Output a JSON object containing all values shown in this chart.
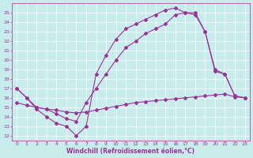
{
  "xlabel": "Windchill (Refroidissement éolien,°C)",
  "xlim": [
    -0.5,
    23.5
  ],
  "ylim": [
    11.5,
    26.0
  ],
  "xticks": [
    0,
    1,
    2,
    3,
    4,
    5,
    6,
    7,
    8,
    9,
    10,
    11,
    12,
    13,
    14,
    15,
    16,
    17,
    18,
    19,
    20,
    21,
    22,
    23
  ],
  "yticks": [
    12,
    13,
    14,
    15,
    16,
    17,
    18,
    19,
    20,
    21,
    22,
    23,
    24,
    25
  ],
  "bg_color": "#c8ecec",
  "grid_color": "#ffffff",
  "line_color": "#993399",
  "line1_x": [
    0,
    1,
    2,
    3,
    4,
    5,
    6,
    7,
    8,
    9,
    10,
    11,
    12,
    13,
    14,
    15,
    16,
    17,
    18,
    19,
    20,
    21,
    22,
    23
  ],
  "line1_y": [
    17.0,
    16.0,
    14.8,
    14.0,
    13.3,
    13.0,
    12.0,
    13.0,
    18.5,
    20.5,
    22.2,
    23.3,
    23.8,
    24.3,
    24.8,
    25.3,
    25.5,
    25.0,
    24.8,
    23.0,
    18.8,
    18.5,
    16.2,
    16.0
  ],
  "line2_x": [
    0,
    1,
    2,
    3,
    4,
    5,
    6,
    7,
    8,
    9,
    10,
    11,
    12,
    13,
    14,
    15,
    16,
    17,
    18,
    19,
    20,
    21,
    22,
    23
  ],
  "line2_y": [
    17.0,
    16.0,
    15.0,
    14.8,
    14.3,
    13.8,
    13.5,
    15.5,
    17.0,
    18.5,
    20.0,
    21.3,
    22.0,
    22.8,
    23.3,
    23.8,
    24.8,
    25.0,
    25.0,
    23.0,
    19.0,
    18.5,
    16.2,
    16.0
  ],
  "line3_x": [
    0,
    1,
    2,
    3,
    4,
    5,
    6,
    7,
    8,
    9,
    10,
    11,
    12,
    13,
    14,
    15,
    16,
    17,
    18,
    19,
    20,
    21,
    22,
    23
  ],
  "line3_y": [
    15.5,
    15.2,
    15.0,
    14.8,
    14.7,
    14.5,
    14.4,
    14.5,
    14.7,
    14.9,
    15.1,
    15.3,
    15.5,
    15.6,
    15.7,
    15.8,
    15.9,
    16.0,
    16.1,
    16.2,
    16.3,
    16.4,
    16.1,
    16.0
  ],
  "marker": "D",
  "marker_size": 2.0,
  "linewidth": 0.8,
  "tick_fontsize": 4.5,
  "xlabel_fontsize": 5.5
}
